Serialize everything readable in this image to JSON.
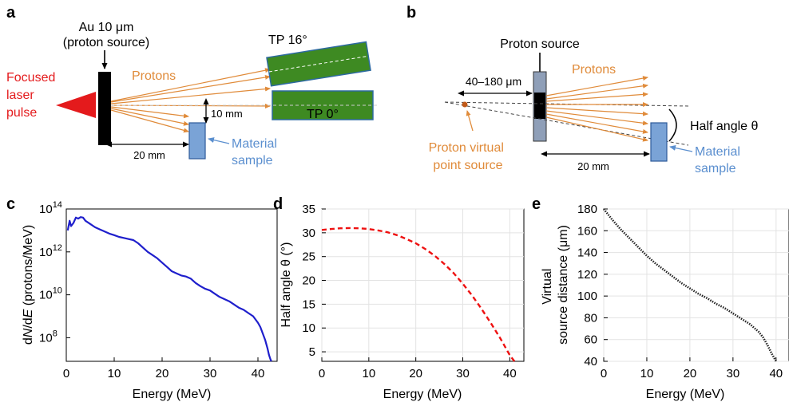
{
  "panel_a": {
    "letter": "a",
    "au_label": "Au 10 μm",
    "source_label": "(proton source)",
    "laser_label": [
      "Focused",
      "laser",
      "pulse"
    ],
    "protons_label": "Protons",
    "tp16_label": "TP 16°",
    "tp0_label": "TP 0°",
    "gap_label": "10 mm",
    "dist_label": "20 mm",
    "sample_label": [
      "Material",
      "sample"
    ]
  },
  "panel_b": {
    "letter": "b",
    "source_label": "Proton source",
    "protons_label": "Protons",
    "range_label": "40–180 μm",
    "halfangle_label": "Half angle θ",
    "virtual_label": [
      "Proton virtual",
      "point source"
    ],
    "dist_label": "20 mm",
    "sample_label": [
      "Material",
      "sample"
    ]
  },
  "colors": {
    "laser_red": "#e41a1c",
    "proton_orange": "#e08b3a",
    "tp_green": "#3e8a22",
    "sample_blue": "#7aa3d6",
    "sample_label_blue": "#5b8fcf",
    "series_blue": "#1f1fcc",
    "series_red": "#ee1111",
    "series_black": "#222222"
  },
  "chart_data": [
    {
      "panel": "c",
      "type": "line",
      "xlabel": "Energy (MeV)",
      "ylabel_parts": [
        "d",
        "N",
        "/d",
        "E",
        " (protons/MeV)"
      ],
      "yscale": "log",
      "xlim": [
        0,
        44
      ],
      "ylim_log10": [
        6.9,
        14
      ],
      "x_ticks": [
        0,
        10,
        20,
        30,
        40
      ],
      "y_ticks_exp": [
        8,
        10,
        12,
        14
      ],
      "y_tick_base": "10",
      "style": "solid",
      "series": [
        {
          "x": [
            0.3,
            0.7,
            1.0,
            1.5,
            2.0,
            2.5,
            3.0,
            3.5,
            4.0,
            5.0,
            6.0,
            7.0,
            8.0,
            9.0,
            10,
            11,
            12,
            13,
            14,
            15,
            16,
            17,
            18,
            19,
            20,
            21,
            22,
            23,
            24,
            25,
            26,
            27,
            28,
            29,
            30,
            31,
            32,
            33,
            34,
            35,
            36,
            37,
            38,
            39,
            40,
            40.5,
            41,
            41.5,
            42,
            42.3,
            42.6,
            42.8
          ],
          "y_log10": [
            13.0,
            13.45,
            13.2,
            13.35,
            13.6,
            13.55,
            13.62,
            13.6,
            13.45,
            13.3,
            13.15,
            13.05,
            12.95,
            12.85,
            12.78,
            12.7,
            12.65,
            12.6,
            12.55,
            12.4,
            12.2,
            12.0,
            11.85,
            11.7,
            11.5,
            11.3,
            11.1,
            11.0,
            10.9,
            10.85,
            10.75,
            10.55,
            10.4,
            10.28,
            10.2,
            10.05,
            9.9,
            9.8,
            9.7,
            9.55,
            9.4,
            9.3,
            9.15,
            9.0,
            8.7,
            8.5,
            8.2,
            7.9,
            7.5,
            7.2,
            7.0,
            6.9
          ]
        }
      ]
    },
    {
      "panel": "d",
      "type": "line",
      "xlabel": "Energy (MeV)",
      "ylabel": "Half angle θ (°)",
      "xlim": [
        0,
        43
      ],
      "ylim": [
        3,
        35
      ],
      "x_ticks": [
        0,
        10,
        20,
        30,
        40
      ],
      "y_ticks": [
        5,
        10,
        15,
        20,
        25,
        30,
        35
      ],
      "grid": true,
      "style": "dashed",
      "series": [
        {
          "x": [
            0,
            2,
            4,
            6,
            8,
            10,
            12,
            14,
            16,
            18,
            20,
            22,
            24,
            26,
            28,
            30,
            32,
            34,
            36,
            38,
            40,
            41
          ],
          "y": [
            30.6,
            30.8,
            30.95,
            31.0,
            30.95,
            30.8,
            30.5,
            30.1,
            29.5,
            28.7,
            27.8,
            26.6,
            25.2,
            23.5,
            21.6,
            19.3,
            16.8,
            14.0,
            11.0,
            7.8,
            4.3,
            3.0
          ]
        }
      ]
    },
    {
      "panel": "e",
      "type": "line",
      "xlabel": "Energy (MeV)",
      "ylabel_lines": [
        "Virtual",
        "source distance (μm)"
      ],
      "xlim": [
        0,
        43
      ],
      "ylim": [
        40,
        180
      ],
      "x_ticks": [
        0,
        10,
        20,
        30,
        40
      ],
      "y_ticks": [
        40,
        60,
        80,
        100,
        120,
        140,
        160,
        180
      ],
      "grid": true,
      "style": "dotted",
      "series": [
        {
          "x": [
            0,
            2,
            4,
            6,
            8,
            10,
            12,
            14,
            16,
            18,
            20,
            22,
            24,
            26,
            28,
            30,
            32,
            34,
            36,
            37,
            38,
            39,
            40
          ],
          "y": [
            180,
            170,
            161,
            153,
            145,
            137,
            130,
            124,
            118,
            112,
            107,
            102,
            98,
            93,
            89,
            84,
            79,
            74,
            67,
            62,
            55,
            47,
            40
          ]
        }
      ]
    }
  ]
}
